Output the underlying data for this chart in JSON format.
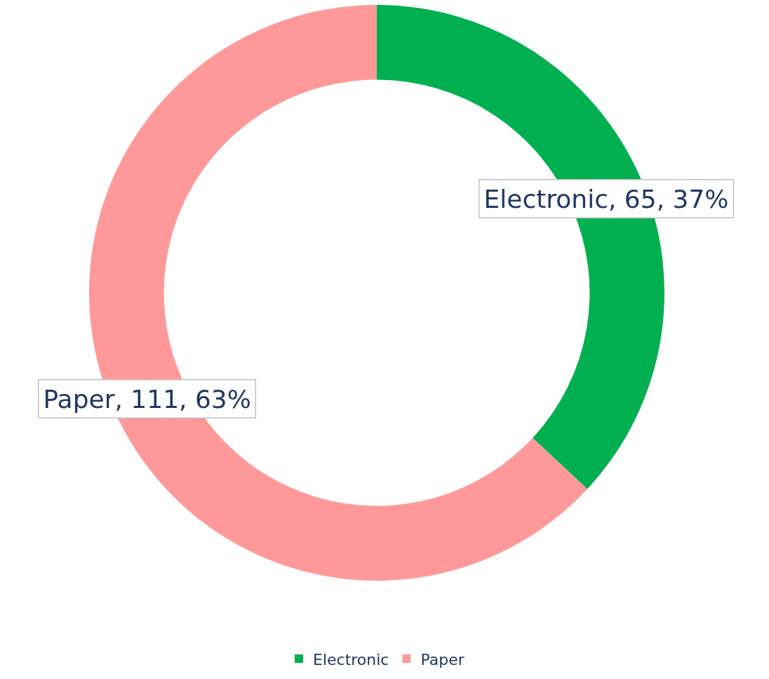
{
  "chart_data": {
    "type": "donut",
    "categories": [
      "Electronic",
      "Paper"
    ],
    "values": [
      65,
      111
    ],
    "colors": [
      "#00b050",
      "#ff9999"
    ],
    "value_labels": [
      "Electronic, 65, 37%",
      "Paper, 111, 63%"
    ],
    "legend": "bottom"
  }
}
